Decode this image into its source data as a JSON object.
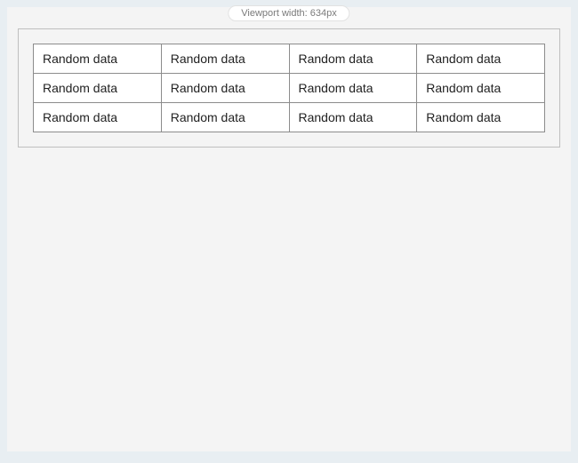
{
  "viewport": {
    "label": "Viewport width: 634px"
  },
  "table": {
    "columns": 4,
    "rows": [
      [
        "Random data",
        "Random data",
        "Random data",
        "Random data"
      ],
      [
        "Random data",
        "Random data",
        "Random data",
        "Random data"
      ],
      [
        "Random data",
        "Random data",
        "Random data",
        "Random data"
      ]
    ]
  },
  "colors": {
    "page_background": "#e8eef2",
    "panel_background": "#f4f4f4",
    "panel_border": "#bfbfbf",
    "cell_border": "#8c8c8c",
    "cell_background": "#ffffff",
    "text": "#222222",
    "badge_background": "#ffffff",
    "badge_border": "#e2e2e2",
    "badge_text": "#7a7a7a"
  },
  "typography": {
    "cell_fontsize": 14,
    "badge_fontsize": 11,
    "font_family": "Arial"
  }
}
